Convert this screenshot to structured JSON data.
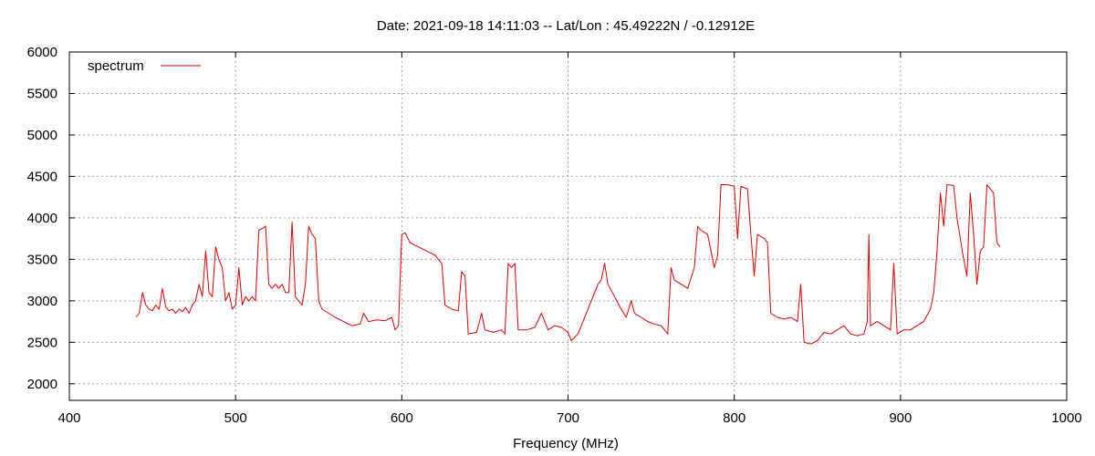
{
  "chart_data": {
    "type": "line",
    "title": "Date: 2021-09-18 14:11:03  --  Lat/Lon : 45.49222N / -0.12912E",
    "xlabel": "Frequency (MHz)",
    "ylabel": "",
    "xlim": [
      400,
      1000
    ],
    "ylim": [
      1800,
      6000
    ],
    "x_ticks": [
      400,
      500,
      600,
      700,
      800,
      900,
      1000
    ],
    "y_ticks": [
      2000,
      2500,
      3000,
      3500,
      4000,
      4500,
      5000,
      5500,
      6000
    ],
    "grid": true,
    "legend": "top-left",
    "series": [
      {
        "name": "spectrum",
        "color": "#e00000",
        "points": [
          [
            440,
            2800
          ],
          [
            442,
            2850
          ],
          [
            444,
            3100
          ],
          [
            446,
            2950
          ],
          [
            448,
            2900
          ],
          [
            450,
            2880
          ],
          [
            452,
            2950
          ],
          [
            454,
            2900
          ],
          [
            456,
            3150
          ],
          [
            458,
            2920
          ],
          [
            460,
            2880
          ],
          [
            462,
            2900
          ],
          [
            464,
            2850
          ],
          [
            466,
            2900
          ],
          [
            468,
            2870
          ],
          [
            470,
            2920
          ],
          [
            472,
            2850
          ],
          [
            474,
            2950
          ],
          [
            476,
            3000
          ],
          [
            478,
            3200
          ],
          [
            480,
            3050
          ],
          [
            482,
            3600
          ],
          [
            484,
            3100
          ],
          [
            486,
            3050
          ],
          [
            488,
            3650
          ],
          [
            490,
            3500
          ],
          [
            492,
            3400
          ],
          [
            494,
            3000
          ],
          [
            496,
            3100
          ],
          [
            498,
            2900
          ],
          [
            500,
            2950
          ],
          [
            502,
            3400
          ],
          [
            504,
            2950
          ],
          [
            506,
            3050
          ],
          [
            508,
            3000
          ],
          [
            510,
            3050
          ],
          [
            512,
            3000
          ],
          [
            514,
            3850
          ],
          [
            516,
            3870
          ],
          [
            518,
            3900
          ],
          [
            520,
            3200
          ],
          [
            522,
            3150
          ],
          [
            524,
            3200
          ],
          [
            526,
            3150
          ],
          [
            528,
            3200
          ],
          [
            530,
            3100
          ],
          [
            532,
            3100
          ],
          [
            534,
            3950
          ],
          [
            536,
            3050
          ],
          [
            538,
            3000
          ],
          [
            540,
            2950
          ],
          [
            542,
            3200
          ],
          [
            544,
            3900
          ],
          [
            546,
            3800
          ],
          [
            548,
            3750
          ],
          [
            550,
            3000
          ],
          [
            552,
            2900
          ],
          [
            556,
            2850
          ],
          [
            560,
            2800
          ],
          [
            565,
            2750
          ],
          [
            570,
            2700
          ],
          [
            575,
            2720
          ],
          [
            577,
            2850
          ],
          [
            580,
            2750
          ],
          [
            585,
            2770
          ],
          [
            590,
            2760
          ],
          [
            594,
            2800
          ],
          [
            596,
            2650
          ],
          [
            598,
            2700
          ],
          [
            600,
            3800
          ],
          [
            602,
            3820
          ],
          [
            605,
            3700
          ],
          [
            610,
            3650
          ],
          [
            615,
            3600
          ],
          [
            620,
            3550
          ],
          [
            622,
            3500
          ],
          [
            624,
            3450
          ],
          [
            626,
            2950
          ],
          [
            630,
            2900
          ],
          [
            634,
            2880
          ],
          [
            636,
            3350
          ],
          [
            638,
            3300
          ],
          [
            640,
            2600
          ],
          [
            645,
            2620
          ],
          [
            648,
            2850
          ],
          [
            650,
            2650
          ],
          [
            655,
            2620
          ],
          [
            660,
            2650
          ],
          [
            662,
            2600
          ],
          [
            664,
            3450
          ],
          [
            666,
            3400
          ],
          [
            668,
            3450
          ],
          [
            670,
            2650
          ],
          [
            675,
            2650
          ],
          [
            680,
            2680
          ],
          [
            684,
            2850
          ],
          [
            688,
            2650
          ],
          [
            692,
            2700
          ],
          [
            696,
            2680
          ],
          [
            700,
            2620
          ],
          [
            702,
            2520
          ],
          [
            706,
            2600
          ],
          [
            710,
            2800
          ],
          [
            714,
            3000
          ],
          [
            718,
            3200
          ],
          [
            720,
            3250
          ],
          [
            722,
            3450
          ],
          [
            724,
            3200
          ],
          [
            728,
            3050
          ],
          [
            732,
            2900
          ],
          [
            735,
            2800
          ],
          [
            738,
            3000
          ],
          [
            740,
            2850
          ],
          [
            744,
            2800
          ],
          [
            748,
            2750
          ],
          [
            752,
            2720
          ],
          [
            756,
            2700
          ],
          [
            760,
            2600
          ],
          [
            762,
            3400
          ],
          [
            764,
            3250
          ],
          [
            768,
            3200
          ],
          [
            772,
            3150
          ],
          [
            776,
            3400
          ],
          [
            778,
            3900
          ],
          [
            780,
            3850
          ],
          [
            784,
            3800
          ],
          [
            788,
            3400
          ],
          [
            790,
            3550
          ],
          [
            792,
            4400
          ],
          [
            796,
            4400
          ],
          [
            800,
            4380
          ],
          [
            802,
            3750
          ],
          [
            804,
            4380
          ],
          [
            808,
            4350
          ],
          [
            810,
            3800
          ],
          [
            812,
            3300
          ],
          [
            814,
            3800
          ],
          [
            818,
            3750
          ],
          [
            820,
            3700
          ],
          [
            822,
            2850
          ],
          [
            826,
            2800
          ],
          [
            830,
            2780
          ],
          [
            834,
            2800
          ],
          [
            838,
            2750
          ],
          [
            840,
            3200
          ],
          [
            842,
            2500
          ],
          [
            846,
            2480
          ],
          [
            850,
            2520
          ],
          [
            854,
            2620
          ],
          [
            858,
            2600
          ],
          [
            862,
            2650
          ],
          [
            866,
            2700
          ],
          [
            870,
            2600
          ],
          [
            874,
            2580
          ],
          [
            878,
            2600
          ],
          [
            880,
            2750
          ],
          [
            881,
            3800
          ],
          [
            882,
            2700
          ],
          [
            886,
            2750
          ],
          [
            890,
            2700
          ],
          [
            894,
            2650
          ],
          [
            896,
            3450
          ],
          [
            898,
            2600
          ],
          [
            902,
            2650
          ],
          [
            906,
            2650
          ],
          [
            910,
            2700
          ],
          [
            914,
            2750
          ],
          [
            918,
            2900
          ],
          [
            920,
            3100
          ],
          [
            922,
            3600
          ],
          [
            924,
            4300
          ],
          [
            926,
            3900
          ],
          [
            928,
            4400
          ],
          [
            932,
            4390
          ],
          [
            934,
            4000
          ],
          [
            936,
            3750
          ],
          [
            938,
            3500
          ],
          [
            940,
            3300
          ],
          [
            942,
            4300
          ],
          [
            944,
            3800
          ],
          [
            946,
            3200
          ],
          [
            948,
            3600
          ],
          [
            950,
            3650
          ],
          [
            952,
            4400
          ],
          [
            954,
            4350
          ],
          [
            956,
            4300
          ],
          [
            958,
            3700
          ],
          [
            960,
            3650
          ]
        ]
      }
    ]
  }
}
